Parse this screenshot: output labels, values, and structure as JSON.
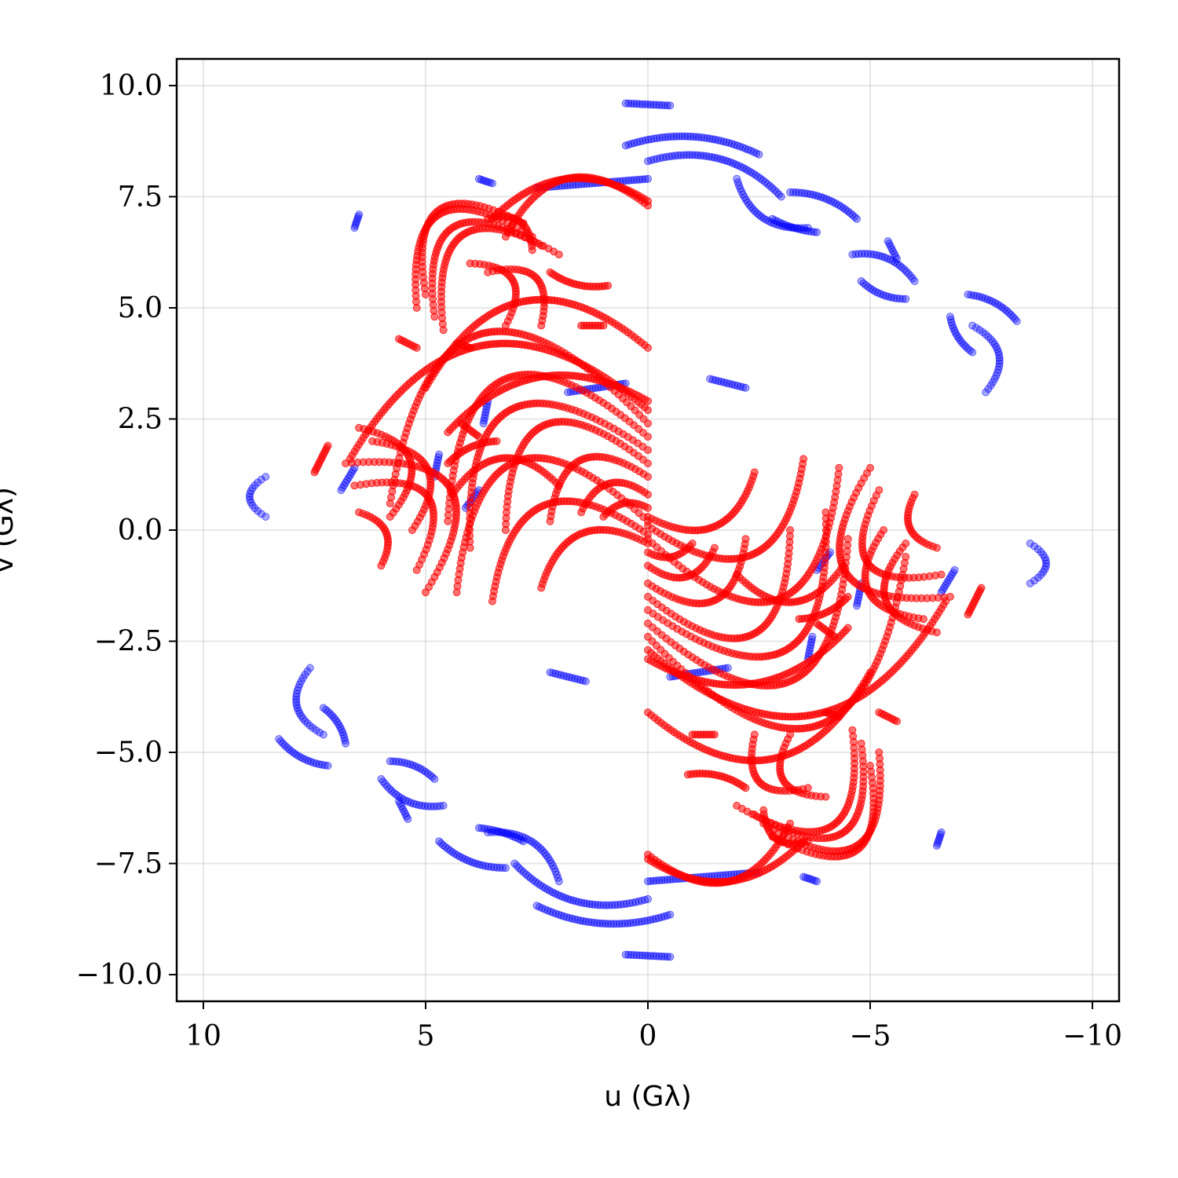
{
  "chart_data": {
    "type": "scatter",
    "xlabel": "u (Gλ)",
    "ylabel": "v (Gλ)",
    "xlim": [
      10.6,
      -10.6
    ],
    "ylim": [
      -10.6,
      10.6
    ],
    "x_inverted": true,
    "grid": true,
    "xticks": [
      10,
      5,
      0,
      -5,
      -10
    ],
    "xtick_labels": [
      "10",
      "5",
      "0",
      "−5",
      "−10"
    ],
    "yticks": [
      10.0,
      7.5,
      5.0,
      2.5,
      0.0,
      -2.5,
      -5.0,
      -7.5,
      -10.0
    ],
    "ytick_labels": [
      "10.0",
      "7.5",
      "5.0",
      "2.5",
      "0.0",
      "−2.5",
      "−5.0",
      "−7.5",
      "−10.0"
    ],
    "symmetry": "each point (u, v) is also plotted at (−u, −v)",
    "series": [
      {
        "color": "#0000ff",
        "opacity": 0.35,
        "tracks": [
          {
            "u0": 0.5,
            "v0": 9.6,
            "u1": -0.5,
            "v1": 9.55,
            "bend": 0.0
          },
          {
            "u0": 0.5,
            "v0": 8.65,
            "u1": -2.5,
            "v1": 8.45,
            "bend": -0.1
          },
          {
            "u0": 0.0,
            "v0": 8.3,
            "u1": -3.0,
            "v1": 7.5,
            "bend": -0.15
          },
          {
            "u0": -2.0,
            "v0": 7.9,
            "u1": -3.6,
            "v1": 6.8,
            "bend": 0.2
          },
          {
            "u0": -3.2,
            "v0": 7.6,
            "u1": -4.7,
            "v1": 7.0,
            "bend": -0.1
          },
          {
            "u0": -2.8,
            "v0": 7.0,
            "u1": -3.8,
            "v1": 6.7,
            "bend": 0.05
          },
          {
            "u0": -5.4,
            "v0": 6.5,
            "u1": -5.6,
            "v1": 6.1,
            "bend": 0.0
          },
          {
            "u0": -4.6,
            "v0": 6.2,
            "u1": -6.0,
            "v1": 5.6,
            "bend": -0.15
          },
          {
            "u0": -4.8,
            "v0": 5.6,
            "u1": -5.8,
            "v1": 5.2,
            "bend": 0.1
          },
          {
            "u0": -7.2,
            "v0": 5.3,
            "u1": -8.3,
            "v1": 4.7,
            "bend": -0.1
          },
          {
            "u0": -6.8,
            "v0": 4.8,
            "u1": -7.3,
            "v1": 4.0,
            "bend": 0.1
          },
          {
            "u0": -7.3,
            "v0": 4.6,
            "u1": -7.6,
            "v1": 3.1,
            "bend": -0.3
          },
          {
            "u0": 6.5,
            "v0": 7.1,
            "u1": 6.6,
            "v1": 6.8,
            "bend": 0.0
          },
          {
            "u0": 3.8,
            "v0": 7.9,
            "u1": 3.5,
            "v1": 7.8,
            "bend": 0.0
          },
          {
            "u0": 2.5,
            "v0": 7.7,
            "u1": 0.0,
            "v1": 7.9,
            "bend": 0.0
          },
          {
            "u0": 8.6,
            "v0": 1.2,
            "u1": 8.6,
            "v1": 0.3,
            "bend": 0.4
          },
          {
            "u0": 6.6,
            "v0": 1.4,
            "u1": 6.9,
            "v1": 0.9,
            "bend": 0.0
          },
          {
            "u0": 4.7,
            "v0": 1.7,
            "u1": 4.8,
            "v1": 1.2,
            "bend": 0.0
          },
          {
            "u0": 3.6,
            "v0": 2.9,
            "u1": 3.7,
            "v1": 2.4,
            "bend": 0.0
          },
          {
            "u0": 3.8,
            "v0": 0.9,
            "u1": 4.1,
            "v1": 0.5,
            "bend": 0.0
          },
          {
            "u0": 1.8,
            "v0": 3.1,
            "u1": 0.5,
            "v1": 3.3,
            "bend": 0.0
          },
          {
            "u0": -1.4,
            "v0": 3.4,
            "u1": -2.2,
            "v1": 3.2,
            "bend": 0.0
          }
        ]
      },
      {
        "color": "#ff0000",
        "opacity": 0.55,
        "tracks": [
          {
            "u0": 0.0,
            "v0": 7.4,
            "u1": 3.5,
            "v1": 7.0,
            "bend": 0.2
          },
          {
            "u0": 0.0,
            "v0": 7.3,
            "u1": 3.2,
            "v1": 6.6,
            "bend": 0.3
          },
          {
            "u0": 3.6,
            "v0": 7.0,
            "u1": 2.6,
            "v1": 6.3,
            "bend": -0.3
          },
          {
            "u0": 2.8,
            "v0": 6.9,
            "u1": 5.0,
            "v1": 5.3,
            "bend": 0.5
          },
          {
            "u0": 2.6,
            "v0": 6.6,
            "u1": 5.2,
            "v1": 5.0,
            "bend": 0.5
          },
          {
            "u0": 2.4,
            "v0": 6.4,
            "u1": 4.8,
            "v1": 4.8,
            "bend": 0.5
          },
          {
            "u0": 2.0,
            "v0": 6.2,
            "u1": 4.6,
            "v1": 4.5,
            "bend": 0.5
          },
          {
            "u0": 4.0,
            "v0": 6.0,
            "u1": 3.2,
            "v1": 4.6,
            "bend": -0.4
          },
          {
            "u0": 3.6,
            "v0": 5.8,
            "u1": 2.4,
            "v1": 4.6,
            "bend": -0.4
          },
          {
            "u0": 2.2,
            "v0": 5.8,
            "u1": 0.9,
            "v1": 5.5,
            "bend": 0.1
          },
          {
            "u0": 0.0,
            "v0": 4.1,
            "u1": 5.0,
            "v1": 3.2,
            "bend": 0.3
          },
          {
            "u0": 4.0,
            "v0": 4.1,
            "u1": 4.3,
            "v1": 4.2,
            "bend": 0.0
          },
          {
            "u0": 1.5,
            "v0": 4.6,
            "u1": 1.0,
            "v1": 4.6,
            "bend": 0.0
          },
          {
            "u0": 5.6,
            "v0": 4.3,
            "u1": 5.2,
            "v1": 4.1,
            "bend": 0.0
          },
          {
            "u0": 0.0,
            "v0": 2.9,
            "u1": 4.5,
            "v1": 2.2,
            "bend": 0.2
          },
          {
            "u0": 0.0,
            "v0": 2.7,
            "u1": 6.7,
            "v1": 1.6,
            "bend": 0.3
          },
          {
            "u0": 0.0,
            "v0": 2.4,
            "u1": 5.8,
            "v1": 0.6,
            "bend": 0.5
          },
          {
            "u0": 0.0,
            "v0": 2.1,
            "u1": 4.5,
            "v1": 0.2,
            "bend": 0.5
          },
          {
            "u0": 0.0,
            "v0": 1.8,
            "u1": 4.0,
            "v1": -0.4,
            "bend": 0.5
          },
          {
            "u0": 0.0,
            "v0": 1.5,
            "u1": 3.2,
            "v1": 0.0,
            "bend": 0.5
          },
          {
            "u0": 0.0,
            "v0": 1.2,
            "u1": 2.2,
            "v1": 0.2,
            "bend": 0.4
          },
          {
            "u0": 0.0,
            "v0": 0.8,
            "u1": 1.5,
            "v1": 0.4,
            "bend": 0.3
          },
          {
            "u0": 0.0,
            "v0": 0.5,
            "u1": 1.0,
            "v1": 0.3,
            "bend": 0.2
          },
          {
            "u0": 0.0,
            "v0": 0.2,
            "u1": 4.3,
            "v1": -1.4,
            "bend": 0.5
          },
          {
            "u0": 0.0,
            "v0": -0.1,
            "u1": 3.5,
            "v1": -1.6,
            "bend": 0.4
          },
          {
            "u0": 0.0,
            "v0": -0.3,
            "u1": 2.4,
            "v1": -1.3,
            "bend": 0.3
          },
          {
            "u0": 6.5,
            "v0": 2.3,
            "u1": 5.8,
            "v1": 0.3,
            "bend": -0.4
          },
          {
            "u0": 6.2,
            "v0": 2.0,
            "u1": 5.3,
            "v1": 0.0,
            "bend": -0.4
          },
          {
            "u0": 6.8,
            "v0": 1.5,
            "u1": 5.0,
            "v1": -1.4,
            "bend": -0.5
          },
          {
            "u0": 6.6,
            "v0": 1.0,
            "u1": 5.2,
            "v1": -0.9,
            "bend": -0.5
          },
          {
            "u0": 6.5,
            "v0": 0.4,
            "u1": 6.0,
            "v1": -0.8,
            "bend": -0.3
          },
          {
            "u0": 7.2,
            "v0": 1.9,
            "u1": 7.5,
            "v1": 1.3,
            "bend": 0.0
          },
          {
            "u0": 4.2,
            "v0": 2.4,
            "u1": 3.8,
            "v1": 2.1,
            "bend": 0.0
          },
          {
            "u0": 3.4,
            "v0": 2.0,
            "u1": 4.5,
            "v1": 1.5,
            "bend": 0.1
          },
          {
            "u0": 2.0,
            "v0": 1.0,
            "u1": 4.4,
            "v1": 0.8,
            "bend": 0.3
          }
        ]
      }
    ]
  }
}
